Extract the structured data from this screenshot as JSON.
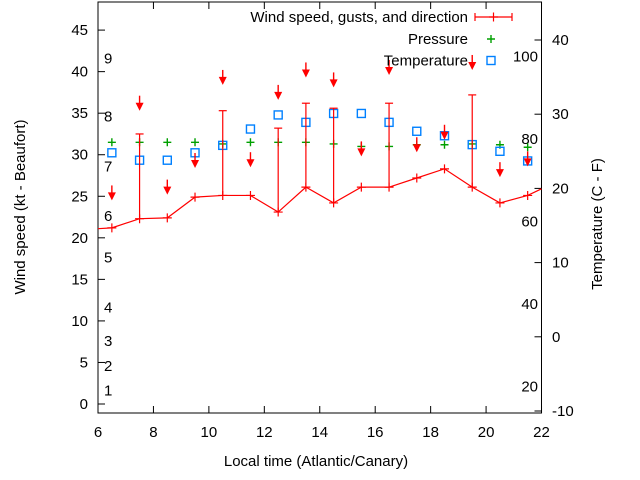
{
  "chart_data": {
    "type": "line",
    "title": "",
    "background": "#ffffff",
    "grid": false,
    "legend_position": "top-right-inside",
    "x_hours": [
      6.5,
      7.5,
      8.5,
      9.5,
      10.5,
      11.5,
      12.5,
      13.5,
      14.5,
      15.5,
      16.5,
      17.5,
      18.5,
      19.5,
      20.5,
      21.5
    ],
    "axes": {
      "x": {
        "label": "Local time (Atlantic/Canary)",
        "min": 6,
        "max": 22,
        "ticks": [
          6,
          8,
          10,
          12,
          14,
          16,
          18,
          20,
          22
        ]
      },
      "y_left": {
        "label": "Wind speed (kt - Beaufort)",
        "min": 0,
        "max": 48.4,
        "ticks": [
          0,
          5,
          10,
          15,
          20,
          25,
          30,
          35,
          40,
          45
        ]
      },
      "y_left_inner_beaufort": [
        {
          "force": "1",
          "kt": 1
        },
        {
          "force": "2",
          "kt": 4
        },
        {
          "force": "3",
          "kt": 7
        },
        {
          "force": "4",
          "kt": 11
        },
        {
          "force": "5",
          "kt": 17
        },
        {
          "force": "6",
          "kt": 22
        },
        {
          "force": "7",
          "kt": 28
        },
        {
          "force": "8",
          "kt": 34
        },
        {
          "force": "9",
          "kt": 41
        }
      ],
      "y_right": {
        "label": "Temperature (C - F)",
        "min": -10,
        "max": 40,
        "ticks": [
          -10,
          0,
          10,
          20,
          30,
          40
        ]
      },
      "y_right_inner_fahrenheit": [
        "20",
        "40",
        "60",
        "80",
        "100"
      ]
    },
    "series": [
      {
        "name": "Wind speed, gusts, and direction",
        "color": "#ff0000",
        "marker": "plus-with-errorbar",
        "wind_kt": [
          21.2,
          22.3,
          22.4,
          24.9,
          25.1,
          25.1,
          23.1,
          26.1,
          24.2,
          26.1,
          26.1,
          27.2,
          28.3,
          26.1,
          24.2,
          25.1
        ],
        "gust_kt": [
          null,
          32.5,
          null,
          null,
          35.3,
          null,
          33.2,
          36.2,
          35.6,
          null,
          36.2,
          null,
          null,
          37.2,
          null,
          null
        ],
        "direction_arrow_tip_kt": [
          24.5,
          35.3,
          25.2,
          28.4,
          38.4,
          28.5,
          36.6,
          39.3,
          38.1,
          29.8,
          39.6,
          30.3,
          31.8,
          40.2,
          27.3,
          28.6
        ],
        "arrow_direction": "down",
        "edge_left": {
          "hour": 6.0,
          "kt": 21.1
        },
        "edge_right": {
          "hour": 22.0,
          "kt": 25.9
        }
      },
      {
        "name": "Pressure",
        "color": "#00a000",
        "marker": "plus",
        "values_left_axis_scale": [
          31.5,
          31.5,
          31.5,
          31.5,
          31.3,
          31.5,
          31.5,
          31.5,
          31.3,
          31.0,
          31.0,
          31.2,
          31.2,
          31.3,
          31.2,
          30.9
        ],
        "note": "plotted without visible pressure scale"
      },
      {
        "name": "Temperature",
        "color": "#0080ff",
        "marker": "open-square",
        "values_c": [
          24.8,
          23.8,
          23.8,
          24.8,
          25.8,
          28.0,
          29.9,
          28.9,
          30.1,
          30.1,
          28.9,
          27.7,
          27.1,
          25.9,
          25.0,
          23.7
        ]
      }
    ]
  }
}
